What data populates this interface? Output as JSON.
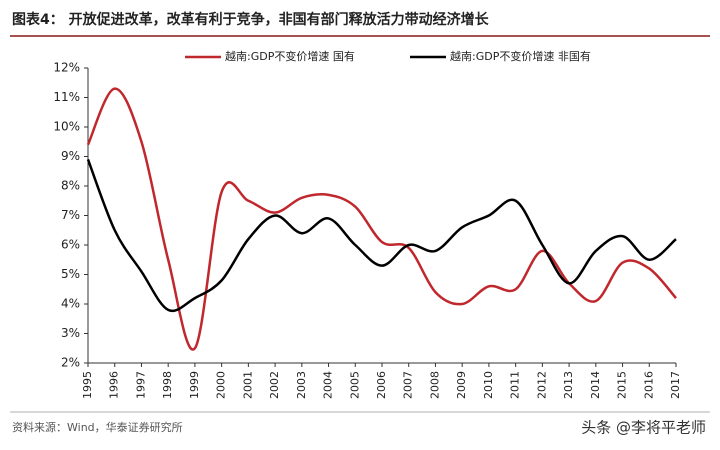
{
  "chart_data": {
    "type": "line",
    "title": "图表4：  开放促进改革，改革有利于竞争，非国有部门释放活力带动经济增长",
    "source": "资料来源：Wind，华泰证券研究所",
    "watermark": "头条 @李将平老师",
    "categories": [
      "1995",
      "1996",
      "1997",
      "1998",
      "1999",
      "2000",
      "2001",
      "2002",
      "2003",
      "2004",
      "2005",
      "2006",
      "2007",
      "2008",
      "2009",
      "2010",
      "2011",
      "2012",
      "2013",
      "2014",
      "2015",
      "2016",
      "2017"
    ],
    "series": [
      {
        "name": "越南:GDP不变价增速 国有",
        "color": "#c0282d",
        "values": [
          9.4,
          11.3,
          9.5,
          5.5,
          2.5,
          7.8,
          7.5,
          7.1,
          7.6,
          7.7,
          7.3,
          6.1,
          5.9,
          4.4,
          4.0,
          4.6,
          4.5,
          5.8,
          4.7,
          4.1,
          5.4,
          5.2,
          4.2
        ]
      },
      {
        "name": "越南:GDP不变价增速 非国有",
        "color": "#000000",
        "values": [
          8.9,
          6.5,
          5.1,
          3.8,
          4.2,
          4.8,
          6.2,
          7.0,
          6.4,
          6.9,
          6.0,
          5.3,
          6.0,
          5.8,
          6.6,
          7.0,
          7.5,
          6.0,
          4.7,
          5.8,
          6.3,
          5.5,
          6.2
        ]
      }
    ],
    "ylim": [
      2,
      12
    ],
    "yticks": [
      {
        "value": 2,
        "label": "2%"
      },
      {
        "value": 3,
        "label": "3%"
      },
      {
        "value": 4,
        "label": "4%"
      },
      {
        "value": 5,
        "label": "5%"
      },
      {
        "value": 6,
        "label": "6%"
      },
      {
        "value": 7,
        "label": "7%"
      },
      {
        "value": 8,
        "label": "8%"
      },
      {
        "value": 9,
        "label": "9%"
      },
      {
        "value": 10,
        "label": "10%"
      },
      {
        "value": 11,
        "label": "11%"
      },
      {
        "value": 12,
        "label": "12%"
      }
    ],
    "grid": false
  }
}
